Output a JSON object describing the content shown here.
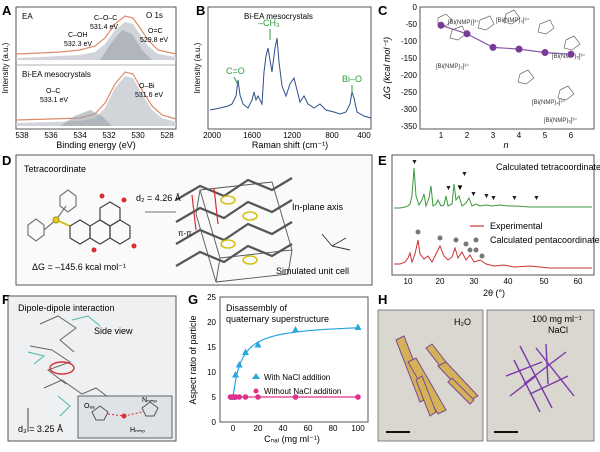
{
  "panels": {
    "A": {
      "letter": "A",
      "top_label": "EA",
      "corner_label": "O 1s",
      "bottom_label": "Bi-EA mesocrystals",
      "ylabel": "Intensity (a.u.)",
      "xlabel": "Binding energy (eV)",
      "xticks": [
        "538",
        "536",
        "534",
        "532",
        "530",
        "528"
      ],
      "top_peaks": [
        {
          "label": "C–O–C",
          "energy": "531.4 eV"
        },
        {
          "label": "C–OH",
          "energy": "532.3 eV"
        },
        {
          "label": "O=C",
          "energy": "529.8 eV"
        }
      ],
      "bottom_peaks": [
        {
          "label": "O–C",
          "energy": "533.1 eV"
        },
        {
          "label": "O–Bi",
          "energy": "531.6 eV"
        }
      ],
      "colors": {
        "envelope": "#e08a6c",
        "fill": "#b9bfc4",
        "frame": "#555555"
      }
    },
    "B": {
      "letter": "B",
      "title": "Bi-EA mesocrystals",
      "ylabel": "Intensity (a.u.)",
      "xlabel": "Raman shift (cm⁻¹)",
      "xticks": [
        "2000",
        "1600",
        "1200",
        "800",
        "400"
      ],
      "annotations": [
        "C=O",
        "–CH₃",
        "Bi–O"
      ],
      "colors": {
        "spectrum": "#2c4f8c",
        "annotation": "#2a9d3a"
      }
    },
    "C": {
      "letter": "C",
      "ylabel": "ΔG (kcal mol⁻¹)",
      "xlabel": "n",
      "xticks": [
        "1",
        "2",
        "3",
        "4",
        "5",
        "6"
      ],
      "yticks": [
        "0",
        "-50",
        "-100",
        "-150",
        "-200",
        "-250",
        "-300",
        "-350"
      ],
      "complex_labels": [
        "[Bi(NMP)]³⁺",
        "[Bi(NMP)₂]³⁺",
        "[Bi(NMP)₃]³⁺",
        "[Bi(NMP)₄]³⁺",
        "[Bi(NMP)₅]³⁺",
        "[Bi(NMP)₆]³⁺"
      ],
      "colors": {
        "point": "#7a3a9a",
        "line": "#8a5aa8"
      },
      "chart_data": {
        "type": "line",
        "x": [
          1,
          2,
          3,
          4,
          5,
          6
        ],
        "values": [
          -45,
          -70,
          -110,
          -115,
          -125,
          -130
        ],
        "xlabel": "n",
        "ylabel": "ΔG (kcal mol⁻¹)",
        "ylim": [
          -350,
          0
        ]
      }
    },
    "D": {
      "letter": "D",
      "title": "Tetracoordinate",
      "d2": "d₂ = 4.26 Å",
      "pipi": "π-π",
      "axis_label": "In-plane axis",
      "delta_g": "ΔG = –145.6 kcal mol⁻¹",
      "cell_label": "Simulated unit cell"
    },
    "E": {
      "letter": "E",
      "legend_calc_tetra": "Calculated tetracoordinate",
      "legend_experimental": "Experimental",
      "legend_calc_penta": "Calculated pentacoordinate",
      "xlabel": "2θ (°)",
      "xticks": [
        "10",
        "20",
        "30",
        "40",
        "50",
        "60"
      ],
      "colors": {
        "tetra": "#3a9a3a",
        "exp": "#cc3333",
        "penta": "#555555"
      }
    },
    "F": {
      "letter": "F",
      "title": "Dipole-dipole interaction",
      "side_view": "Side view",
      "d3": "d₃ = 3.25 Å",
      "inset_labels": [
        "Oₑₐ",
        "Nₙₘₚ",
        "Hₙₘₚ"
      ]
    },
    "G": {
      "letter": "G",
      "title_line1": "Disassembly of",
      "title_line2": "quaternary superstructure",
      "ylabel": "Aspect ratio of particle",
      "xlabel": "Cₙₐₗ (mg ml⁻¹)",
      "xticks": [
        "0",
        "20",
        "40",
        "60",
        "80",
        "100"
      ],
      "yticks": [
        "0",
        "5",
        "10",
        "15",
        "20",
        "25"
      ],
      "colors": {
        "with": "#2aa6df",
        "without": "#e0308a"
      },
      "chart_data": {
        "type": "scatter",
        "series": [
          {
            "name": "With NaCl addition",
            "x": [
              0,
              2,
              5,
              10,
              20,
              50,
              100
            ],
            "values": [
              5,
              9.5,
              11.5,
              14,
              15.5,
              18.5,
              19
            ]
          },
          {
            "name": "Without NaCl addition",
            "x": [
              -2,
              0,
              2,
              5,
              10,
              20,
              50,
              100
            ],
            "values": [
              5,
              5,
              5,
              5,
              5,
              5,
              5,
              5
            ]
          }
        ],
        "xlabel": "Cₙₐₗ (mg ml⁻¹)",
        "ylabel": "Aspect ratio of particle",
        "xlim": [
          -10,
          105
        ],
        "ylim": [
          0,
          25
        ]
      }
    },
    "H": {
      "letter": "H",
      "left_label": "H₂O",
      "right_label_1": "100 mg ml⁻¹",
      "right_label_2": "NaCl"
    }
  }
}
